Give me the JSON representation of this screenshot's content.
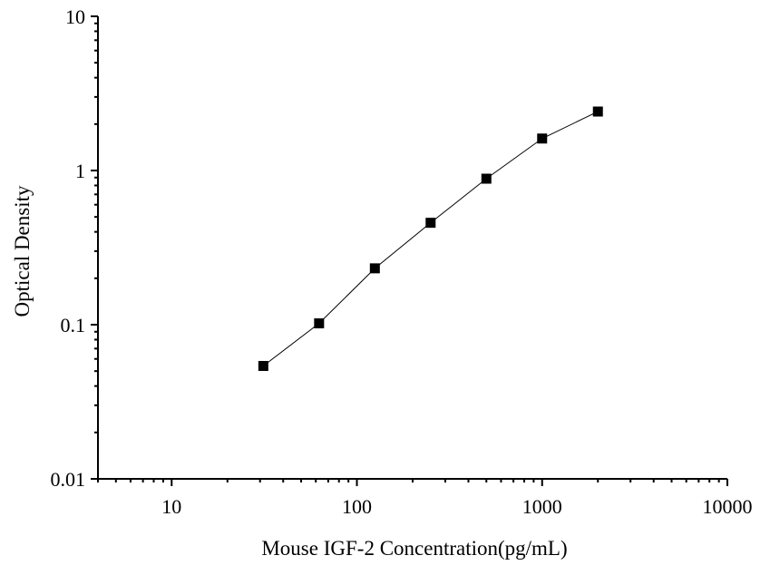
{
  "chart_data": {
    "type": "scatter",
    "title": "",
    "xlabel": "Mouse IGF-2 Concentration(pg/mL)",
    "ylabel": "Optical Density",
    "x_scale": "log",
    "y_scale": "log",
    "xlim": [
      4,
      10000
    ],
    "ylim": [
      0.01,
      10
    ],
    "grid": false,
    "legend": "none",
    "marker": "square",
    "connected_line": true,
    "x_ticks": [
      10,
      100,
      1000,
      10000
    ],
    "x_tick_labels": [
      "10",
      "100",
      "1000",
      "10000"
    ],
    "y_ticks": [
      0.01,
      0.1,
      1,
      10
    ],
    "y_tick_labels": [
      "0.01",
      "0.1",
      "1",
      "10"
    ],
    "series": [
      {
        "x": [
          31.25,
          62.5,
          125,
          250,
          500,
          1000,
          2000
        ],
        "y": [
          0.054,
          0.102,
          0.232,
          0.458,
          0.885,
          1.612,
          2.412
        ]
      }
    ],
    "colors": {
      "axis": "#000000",
      "marker": "#000000",
      "line": "#000000"
    }
  }
}
